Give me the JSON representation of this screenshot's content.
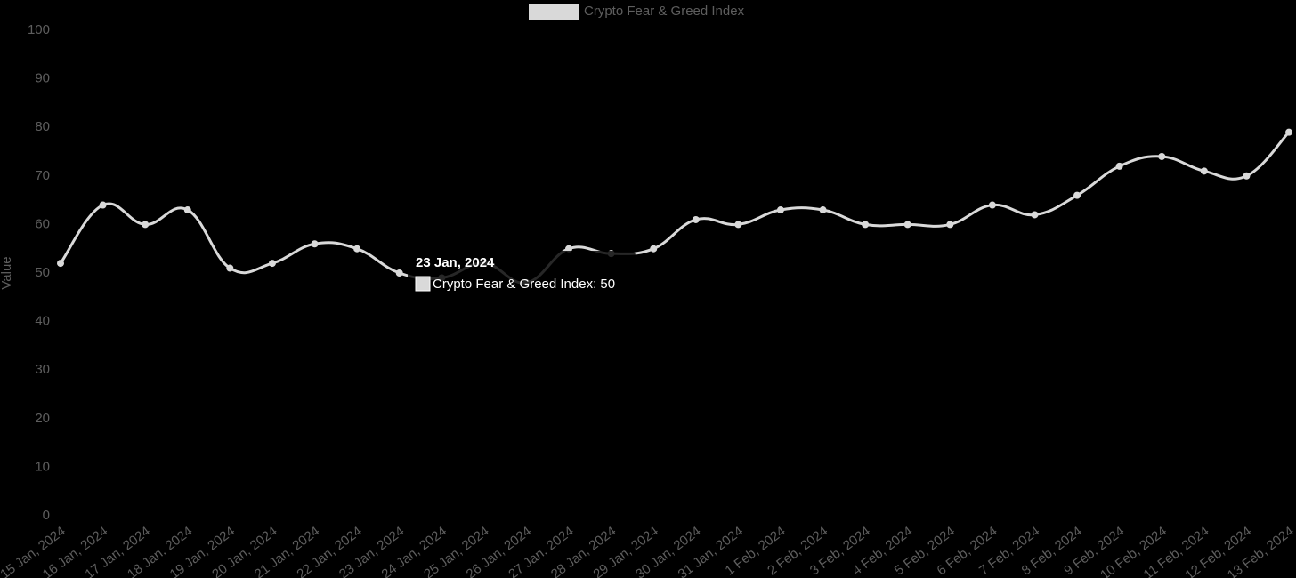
{
  "chart_data": {
    "type": "line",
    "y_label": "Value",
    "categories": [
      "15 Jan, 2024",
      "16 Jan, 2024",
      "17 Jan, 2024",
      "18 Jan, 2024",
      "19 Jan, 2024",
      "20 Jan, 2024",
      "21 Jan, 2024",
      "22 Jan, 2024",
      "23 Jan, 2024",
      "24 Jan, 2024",
      "25 Jan, 2024",
      "26 Jan, 2024",
      "27 Jan, 2024",
      "28 Jan, 2024",
      "29 Jan, 2024",
      "30 Jan, 2024",
      "31 Jan, 2024",
      "1 Feb, 2024",
      "2 Feb, 2024",
      "3 Feb, 2024",
      "4 Feb, 2024",
      "5 Feb, 2024",
      "6 Feb, 2024",
      "7 Feb, 2024",
      "8 Feb, 2024",
      "9 Feb, 2024",
      "10 Feb, 2024",
      "11 Feb, 2024",
      "12 Feb, 2024",
      "13 Feb, 2024"
    ],
    "series": [
      {
        "name": "Crypto Fear & Greed Index",
        "color": "#d9d9d9",
        "values": [
          52,
          64,
          60,
          63,
          51,
          52,
          56,
          55,
          50,
          49,
          52,
          48,
          55,
          54,
          55,
          61,
          60,
          63,
          63,
          60,
          60,
          60,
          64,
          62,
          66,
          72,
          74,
          71,
          70,
          79
        ]
      }
    ],
    "ylim": [
      0,
      100
    ],
    "yticks": [
      0,
      10,
      20,
      30,
      40,
      50,
      60,
      70,
      80,
      90,
      100
    ],
    "grid": false,
    "legend": "top",
    "tooltip": {
      "title": "23 Jan, 2024",
      "text": "Crypto Fear & Greed Index: 50"
    }
  }
}
